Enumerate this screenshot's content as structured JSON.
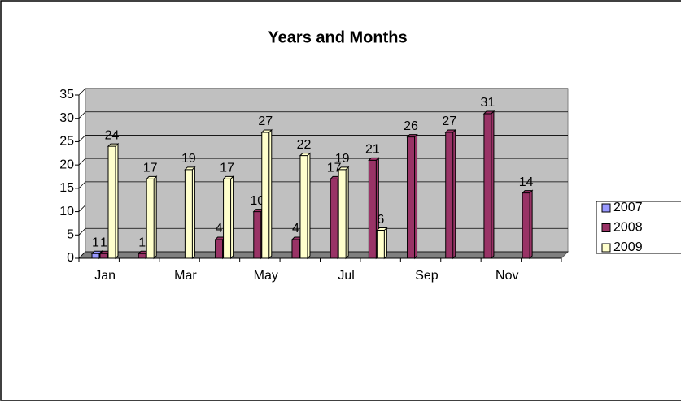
{
  "chart_data": {
    "type": "bar3d",
    "title": "Years and Months",
    "categories": [
      "Jan",
      null,
      "Mar",
      null,
      "May",
      null,
      "Jul",
      null,
      "Sep",
      null,
      "Nov",
      null
    ],
    "series": [
      {
        "name": "2007",
        "color": "#9999ff",
        "values": [
          1,
          null,
          null,
          null,
          null,
          null,
          null,
          null,
          null,
          null,
          null,
          null
        ]
      },
      {
        "name": "2008",
        "color": "#993366",
        "values": [
          1,
          1,
          null,
          4,
          10,
          4,
          17,
          21,
          26,
          27,
          31,
          14
        ]
      },
      {
        "name": "2009",
        "color": "#ffffcc",
        "values": [
          24,
          17,
          19,
          17,
          27,
          22,
          19,
          6,
          null,
          null,
          null,
          null
        ]
      }
    ],
    "ylim": [
      0,
      35
    ],
    "yticks": [
      0,
      5,
      10,
      15,
      20,
      25,
      30,
      35
    ],
    "grid": true,
    "legend": "right"
  }
}
